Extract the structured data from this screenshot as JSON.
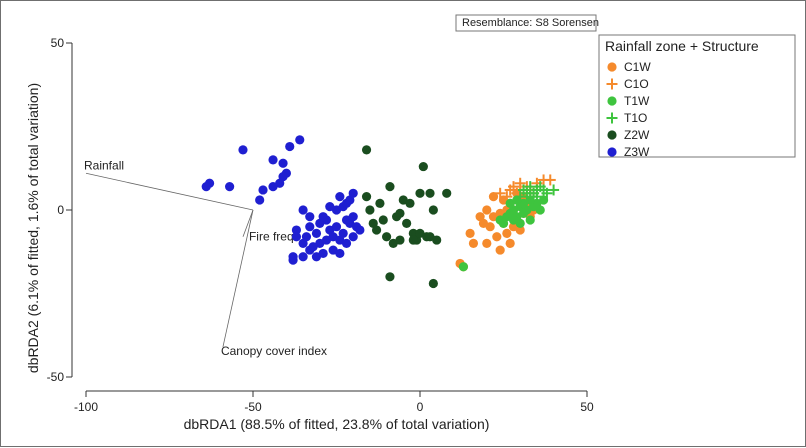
{
  "chart_data": {
    "type": "scatter",
    "title": "",
    "xlabel": "dbRDA1 (88.5% of fitted, 23.8% of total variation)",
    "ylabel": "dbRDA2 (6.1% of fitted, 1.6% of total variation)",
    "xlim": [
      -100,
      50
    ],
    "ylim": [
      -50,
      50
    ],
    "xticks": [
      -100,
      -50,
      0,
      50
    ],
    "yticks": [
      -50,
      0,
      50
    ],
    "grid": false,
    "legend_placement": "right",
    "legend_title": "Rainfall zone + Structure",
    "note": "Resemblance: S8 Sorensen",
    "vector_origin": [
      -50,
      0
    ],
    "vectors": [
      {
        "label": "Rainfall",
        "x": -100,
        "y": 11
      },
      {
        "label": "Fire freq.",
        "x": -53,
        "y": -8
      },
      {
        "label": "Canopy cover index",
        "x": -59,
        "y": -41
      }
    ],
    "series": [
      {
        "name": "C1W",
        "marker": "circle",
        "color": "#f58a2c",
        "points": [
          [
            12,
            -16
          ],
          [
            13,
            -17
          ],
          [
            15,
            -7
          ],
          [
            16,
            -10
          ],
          [
            18,
            -2
          ],
          [
            19,
            -4
          ],
          [
            20,
            -10
          ],
          [
            21,
            -5
          ],
          [
            22,
            -2
          ],
          [
            23,
            -8
          ],
          [
            24,
            -12
          ],
          [
            25,
            -4
          ],
          [
            25,
            3
          ],
          [
            26,
            0
          ],
          [
            26,
            -7
          ],
          [
            27,
            -10
          ],
          [
            28,
            -5
          ],
          [
            29,
            -3
          ],
          [
            30,
            -6
          ],
          [
            31,
            -1
          ],
          [
            32,
            1
          ],
          [
            33,
            -2
          ],
          [
            34,
            0
          ],
          [
            30,
            3
          ],
          [
            27,
            2
          ],
          [
            29,
            5
          ],
          [
            31,
            4
          ],
          [
            24,
            -1
          ],
          [
            22,
            4
          ],
          [
            20,
            0
          ]
        ]
      },
      {
        "name": "C1O",
        "marker": "plus",
        "color": "#f58a2c",
        "points": [
          [
            24,
            5
          ],
          [
            26,
            4
          ],
          [
            27,
            6
          ],
          [
            28,
            7
          ],
          [
            29,
            5
          ],
          [
            30,
            6
          ],
          [
            31,
            5
          ],
          [
            32,
            7
          ],
          [
            33,
            6
          ],
          [
            35,
            8
          ],
          [
            37,
            9
          ],
          [
            39,
            9
          ],
          [
            34,
            5
          ],
          [
            30,
            8
          ]
        ]
      },
      {
        "name": "T1W",
        "marker": "circle",
        "color": "#3ec43e",
        "points": [
          [
            13,
            -17
          ],
          [
            24,
            -3
          ],
          [
            25,
            -4
          ],
          [
            26,
            -2
          ],
          [
            27,
            -1
          ],
          [
            28,
            0
          ],
          [
            29,
            -2
          ],
          [
            30,
            1
          ],
          [
            31,
            2
          ],
          [
            32,
            0
          ],
          [
            33,
            -3
          ],
          [
            34,
            1
          ],
          [
            35,
            2
          ],
          [
            36,
            0
          ],
          [
            37,
            3
          ],
          [
            33,
            3
          ],
          [
            30,
            -4
          ],
          [
            28,
            -3
          ],
          [
            31,
            -1
          ],
          [
            27,
            2
          ],
          [
            29,
            3
          ]
        ]
      },
      {
        "name": "T1O",
        "marker": "plus",
        "color": "#3ec43e",
        "points": [
          [
            30,
            4
          ],
          [
            31,
            6
          ],
          [
            32,
            5
          ],
          [
            33,
            7
          ],
          [
            34,
            5
          ],
          [
            35,
            6
          ],
          [
            36,
            7
          ],
          [
            37,
            6
          ],
          [
            38,
            5
          ],
          [
            40,
            6
          ],
          [
            33,
            4
          ],
          [
            35,
            4
          ]
        ]
      },
      {
        "name": "Z2W",
        "marker": "circle",
        "color": "#1a4d1f",
        "points": [
          [
            -16,
            18
          ],
          [
            1,
            13
          ],
          [
            -9,
            7
          ],
          [
            -5,
            3
          ],
          [
            0,
            5
          ],
          [
            3,
            5
          ],
          [
            8,
            5
          ],
          [
            -16,
            4
          ],
          [
            -12,
            2
          ],
          [
            -15,
            0
          ],
          [
            -11,
            -3
          ],
          [
            -7,
            -2
          ],
          [
            -4,
            -4
          ],
          [
            -13,
            -6
          ],
          [
            -10,
            -8
          ],
          [
            -2,
            -7
          ],
          [
            -1,
            -9
          ],
          [
            0,
            -7
          ],
          [
            2,
            -8
          ],
          [
            3,
            -8
          ],
          [
            5,
            -9
          ],
          [
            -8,
            -10
          ],
          [
            -6,
            -9
          ],
          [
            -2,
            -9
          ],
          [
            -9,
            -20
          ],
          [
            4,
            -22
          ],
          [
            -14,
            -4
          ],
          [
            -3,
            2
          ],
          [
            4,
            0
          ],
          [
            -6,
            -1
          ]
        ]
      },
      {
        "name": "Z3W",
        "marker": "circle",
        "color": "#1f1fd1",
        "points": [
          [
            -36,
            21
          ],
          [
            -53,
            18
          ],
          [
            -39,
            19
          ],
          [
            -44,
            15
          ],
          [
            -41,
            14
          ],
          [
            -40,
            11
          ],
          [
            -41,
            10
          ],
          [
            -42,
            8
          ],
          [
            -44,
            7
          ],
          [
            -47,
            6
          ],
          [
            -48,
            3
          ],
          [
            -57,
            7
          ],
          [
            -63,
            8
          ],
          [
            -64,
            7
          ],
          [
            -35,
            0
          ],
          [
            -33,
            -2
          ],
          [
            -30,
            -4
          ],
          [
            -28,
            -3
          ],
          [
            -27,
            -6
          ],
          [
            -25,
            -5
          ],
          [
            -23,
            -7
          ],
          [
            -22,
            -3
          ],
          [
            -21,
            -4
          ],
          [
            -20,
            -2
          ],
          [
            -19,
            -5
          ],
          [
            -25,
            0
          ],
          [
            -23,
            1
          ],
          [
            -22,
            2
          ],
          [
            -21,
            3
          ],
          [
            -20,
            5
          ],
          [
            -24,
            4
          ],
          [
            -27,
            1
          ],
          [
            -31,
            -7
          ],
          [
            -30,
            -10
          ],
          [
            -28,
            -9
          ],
          [
            -26,
            -8
          ],
          [
            -24,
            -9
          ],
          [
            -22,
            -10
          ],
          [
            -20,
            -8
          ],
          [
            -18,
            -6
          ],
          [
            -37,
            -8
          ],
          [
            -35,
            -10
          ],
          [
            -33,
            -12
          ],
          [
            -31,
            -14
          ],
          [
            -29,
            -13
          ],
          [
            -35,
            -14
          ],
          [
            -38,
            -15
          ],
          [
            -38,
            -14
          ],
          [
            -34,
            -8
          ],
          [
            -32,
            -11
          ],
          [
            -26,
            -12
          ],
          [
            -24,
            -13
          ],
          [
            -37,
            -6
          ],
          [
            -33,
            -5
          ],
          [
            -29,
            -2
          ]
        ]
      }
    ]
  }
}
